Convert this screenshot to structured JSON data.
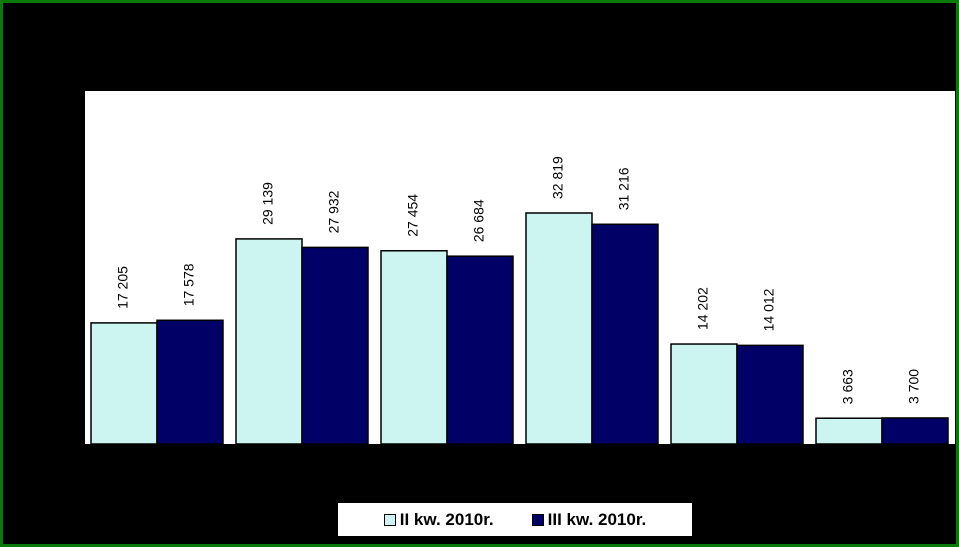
{
  "chart_data": {
    "type": "bar",
    "title": "",
    "xlabel": "",
    "ylabel": "",
    "categories": [
      "",
      "",
      "",
      "",
      "",
      ""
    ],
    "ylim": [
      0,
      40000
    ],
    "grid": false,
    "legend_position": "bottom",
    "series": [
      {
        "name": "II kw. 2010r.",
        "color": "#ccf5f2",
        "values": [
          17205,
          29139,
          27454,
          32819,
          14202,
          3663
        ],
        "labels": [
          "17 205",
          "29 139",
          "27 454",
          "32 819",
          "14 202",
          "3 663"
        ]
      },
      {
        "name": "III kw. 2010r.",
        "color": "#000066",
        "values": [
          17578,
          27932,
          26684,
          31216,
          14012,
          3700
        ],
        "labels": [
          "17 578",
          "27 932",
          "26 684",
          "31 216",
          "14 012",
          "3 700"
        ]
      }
    ]
  },
  "colors": {
    "background": "#000000",
    "plot_area": "#ffffff",
    "border": "#0a7a0a"
  }
}
